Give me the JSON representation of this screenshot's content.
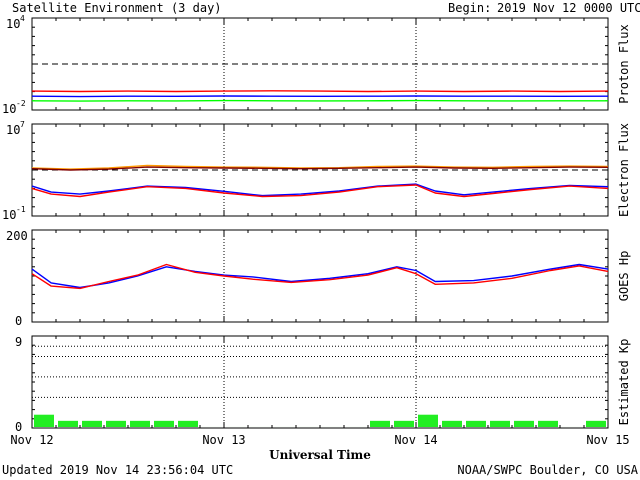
{
  "header": {
    "title": "Satellite Environment (3 day)",
    "begin_label": "Begin:",
    "begin_value": "2019 Nov 12 0000 UTC"
  },
  "footer": {
    "updated": "Updated 2019 Nov 14 23:56:04 UTC",
    "credit": "NOAA/SWPC Boulder, CO USA"
  },
  "colors": {
    "red": "#ff0000",
    "blue": "#0000ff",
    "green": "#00ff00",
    "orange": "#ff9900",
    "dark_red": "#800000",
    "kp_bar": "#22ee22"
  },
  "chart_data": [
    {
      "type": "line",
      "ylabel": "Proton Flux",
      "yscale": "log",
      "ylim": [
        0.01,
        10000
      ],
      "yticks": [
        {
          "base": "10",
          "exp": "4"
        },
        {
          "base": "10",
          "exp": "-2"
        }
      ],
      "x_unit": "days from 2019 Nov 12 0000 UTC",
      "xlim": [
        0,
        3
      ],
      "threshold_line": 10,
      "series": [
        {
          "color": "red",
          "x": [
            0,
            0.25,
            0.5,
            0.75,
            1.0,
            1.25,
            1.5,
            1.75,
            2.0,
            2.25,
            2.5,
            2.75,
            3.0
          ],
          "y": [
            0.17,
            0.16,
            0.17,
            0.16,
            0.17,
            0.18,
            0.17,
            0.16,
            0.17,
            0.16,
            0.17,
            0.16,
            0.17
          ]
        },
        {
          "color": "blue",
          "x": [
            0,
            0.25,
            0.5,
            0.75,
            1.0,
            1.25,
            1.5,
            1.75,
            2.0,
            2.25,
            2.5,
            2.75,
            3.0
          ],
          "y": [
            0.08,
            0.075,
            0.08,
            0.078,
            0.082,
            0.08,
            0.078,
            0.08,
            0.082,
            0.079,
            0.08,
            0.078,
            0.08
          ]
        },
        {
          "color": "green",
          "x": [
            0,
            0.25,
            0.5,
            0.75,
            1.0,
            1.25,
            1.5,
            1.75,
            2.0,
            2.25,
            2.5,
            2.75,
            3.0
          ],
          "y": [
            0.04,
            0.038,
            0.04,
            0.039,
            0.041,
            0.04,
            0.039,
            0.04,
            0.041,
            0.04,
            0.039,
            0.04,
            0.04
          ]
        }
      ]
    },
    {
      "type": "line",
      "ylabel": "Electron Flux",
      "yscale": "log",
      "ylim": [
        0.1,
        10000000
      ],
      "yticks": [
        {
          "base": "10",
          "exp": "7"
        },
        {
          "base": "10",
          "exp": "-1"
        }
      ],
      "x_unit": "days from 2019 Nov 12 0000 UTC",
      "xlim": [
        0,
        3
      ],
      "threshold_line": 1000,
      "series": [
        {
          "color": "orange",
          "x": [
            0,
            0.2,
            0.4,
            0.6,
            0.8,
            1.0,
            1.2,
            1.4,
            1.6,
            1.8,
            2.0,
            2.2,
            2.4,
            2.6,
            2.8,
            3.0
          ],
          "y": [
            1500,
            1200,
            1500,
            2500,
            2000,
            1800,
            1700,
            1500,
            1600,
            2000,
            2200,
            1800,
            1700,
            2000,
            2200,
            2000
          ]
        },
        {
          "color": "dark_red",
          "x": [
            0,
            0.2,
            0.4,
            0.6,
            0.8,
            1.0,
            1.2,
            1.4,
            1.6,
            1.8,
            2.0,
            2.2,
            2.4,
            2.6,
            2.8,
            3.0
          ],
          "y": [
            1300,
            1000,
            1200,
            1800,
            1600,
            1500,
            1400,
            1300,
            1400,
            1600,
            1800,
            1500,
            1400,
            1600,
            1800,
            1700
          ]
        },
        {
          "color": "blue",
          "x": [
            0,
            0.1,
            0.25,
            0.4,
            0.6,
            0.8,
            1.0,
            1.2,
            1.4,
            1.6,
            1.8,
            2.0,
            2.1,
            2.25,
            2.4,
            2.6,
            2.8,
            3.0
          ],
          "y": [
            40,
            12,
            8,
            15,
            40,
            30,
            14,
            6,
            8,
            15,
            40,
            60,
            15,
            7,
            12,
            25,
            45,
            35
          ]
        },
        {
          "color": "red",
          "x": [
            0,
            0.1,
            0.25,
            0.4,
            0.6,
            0.8,
            1.0,
            1.2,
            1.4,
            1.6,
            1.8,
            2.0,
            2.1,
            2.25,
            2.4,
            2.6,
            2.8,
            3.0
          ],
          "y": [
            25,
            8,
            5,
            12,
            35,
            25,
            10,
            5,
            6,
            12,
            35,
            50,
            10,
            5,
            9,
            20,
            40,
            25
          ]
        }
      ]
    },
    {
      "type": "line",
      "ylabel": "GOES Hp",
      "ylim": [
        0,
        200
      ],
      "yticks": [
        "200",
        "0"
      ],
      "x_unit": "days from 2019 Nov 12 0000 UTC",
      "xlim": [
        0,
        3
      ],
      "series": [
        {
          "color": "blue",
          "x": [
            0,
            0.1,
            0.25,
            0.4,
            0.55,
            0.7,
            0.85,
            1.0,
            1.15,
            1.35,
            1.55,
            1.75,
            1.9,
            2.0,
            2.1,
            2.3,
            2.5,
            2.7,
            2.85,
            3.0
          ],
          "y": [
            115,
            85,
            75,
            85,
            100,
            120,
            110,
            102,
            98,
            88,
            95,
            105,
            120,
            112,
            88,
            90,
            100,
            115,
            125,
            115
          ]
        },
        {
          "color": "red",
          "x": [
            0,
            0.1,
            0.25,
            0.4,
            0.55,
            0.7,
            0.85,
            1.0,
            1.15,
            1.35,
            1.55,
            1.75,
            1.9,
            2.0,
            2.1,
            2.3,
            2.5,
            2.7,
            2.85,
            3.0
          ],
          "y": [
            105,
            78,
            73,
            88,
            102,
            125,
            108,
            100,
            93,
            86,
            92,
            102,
            118,
            105,
            82,
            85,
            95,
            112,
            122,
            110
          ]
        }
      ]
    },
    {
      "type": "bar",
      "ylabel": "Estimated Kp",
      "ylim": [
        0,
        9
      ],
      "yticks": [
        "9",
        "0"
      ],
      "hlines": [
        3,
        5,
        7,
        8
      ],
      "x_unit": "days from 2019 Nov 12 0000 UTC",
      "bar_width_days": 0.125,
      "x": [
        0.0625,
        0.1875,
        0.3125,
        0.4375,
        0.5625,
        0.6875,
        0.8125,
        0.9375,
        1.0625,
        1.1875,
        1.3125,
        1.4375,
        1.5625,
        1.6875,
        1.8125,
        1.9375,
        2.0625,
        2.1875,
        2.3125,
        2.4375,
        2.5625,
        2.6875,
        2.8125,
        2.9375
      ],
      "values": [
        1.3,
        0.7,
        0.7,
        0.7,
        0.7,
        0.7,
        0.7,
        0.1,
        0.1,
        0.1,
        0.1,
        0.1,
        0.1,
        0.1,
        0.7,
        0.7,
        1.3,
        0.7,
        0.7,
        0.7,
        0.7,
        0.7,
        0.1,
        0.7
      ],
      "color": "kp_bar"
    }
  ],
  "x_axis": {
    "tick_labels": [
      "Nov 12",
      "Nov 13",
      "Nov 14",
      "Nov 15"
    ],
    "tick_days": [
      0,
      1,
      2,
      3
    ],
    "title": "Universal Time"
  }
}
